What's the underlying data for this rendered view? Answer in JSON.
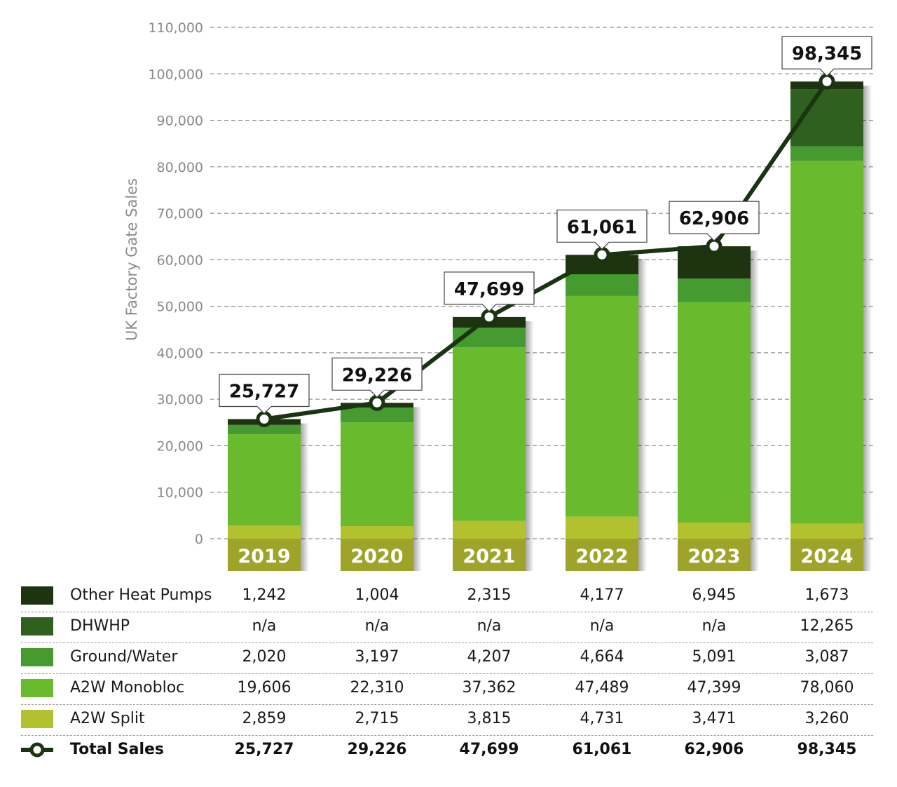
{
  "chart_data": {
    "type": "bar",
    "stacked": true,
    "ylabel": "UK Factory Gate Sales",
    "ylim": [
      0,
      110000
    ],
    "yticks": [
      "0",
      "10,000",
      "20,000",
      "30,000",
      "40,000",
      "50,000",
      "60,000",
      "70,000",
      "80,000",
      "90,000",
      "100,000",
      "110,000"
    ],
    "grid": true,
    "categories": [
      "2019",
      "2020",
      "2021",
      "2022",
      "2023",
      "2024"
    ],
    "series": [
      {
        "name": "A2W Split",
        "color": "#b2c12e",
        "values": [
          2859,
          2715,
          3815,
          4731,
          3471,
          3260
        ],
        "labels": [
          "2,859",
          "2,715",
          "3,815",
          "4,731",
          "3,471",
          "3,260"
        ]
      },
      {
        "name": "A2W Monobloc",
        "color": "#69bb2d",
        "values": [
          19606,
          22310,
          37362,
          47489,
          47399,
          78060
        ],
        "labels": [
          "19,606",
          "22,310",
          "37,362",
          "47,489",
          "47,399",
          "78,060"
        ]
      },
      {
        "name": "Ground/Water",
        "color": "#459a30",
        "values": [
          2020,
          3197,
          4207,
          4664,
          5091,
          3087
        ],
        "labels": [
          "2,020",
          "3,197",
          "4,207",
          "4,664",
          "5,091",
          "3,087"
        ]
      },
      {
        "name": "DHWHP",
        "color": "#2f6020",
        "values": [
          0,
          0,
          0,
          0,
          0,
          12265
        ],
        "labels": [
          "n/a",
          "n/a",
          "n/a",
          "n/a",
          "n/a",
          "12,265"
        ]
      },
      {
        "name": "Other Heat Pumps",
        "color": "#1e3310",
        "values": [
          1242,
          1004,
          2315,
          4177,
          6945,
          1673
        ],
        "labels": [
          "1,242",
          "1,004",
          "2,315",
          "4,177",
          "6,945",
          "1,673"
        ]
      }
    ],
    "total": {
      "name": "Total Sales",
      "values": [
        25727,
        29226,
        47699,
        61061,
        62906,
        98345
      ],
      "labels": [
        "25,727",
        "29,226",
        "47,699",
        "61,061",
        "62,906",
        "98,345"
      ],
      "color": "#1a3310"
    }
  },
  "table_order": [
    4,
    3,
    2,
    1,
    0
  ],
  "year_band_color": "#9ea42a"
}
